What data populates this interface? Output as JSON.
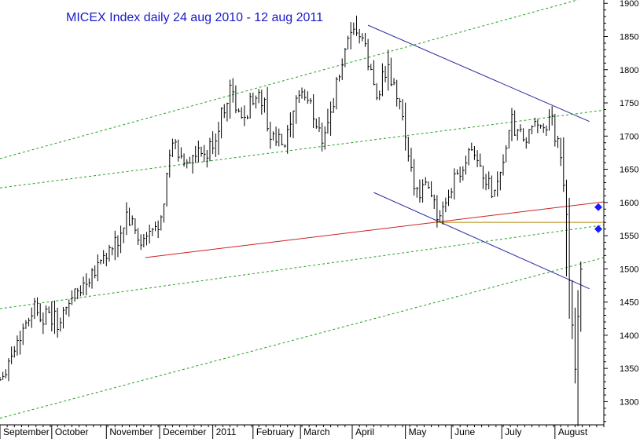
{
  "chart_data": {
    "type": "bar",
    "title": "MICEX Index daily 24 aug 2010 - 12 aug 2011",
    "xlabel": "",
    "ylabel": "",
    "ylim": [
      1265,
      1905
    ],
    "y_ticks": [
      1300,
      1350,
      1400,
      1450,
      1500,
      1550,
      1600,
      1650,
      1700,
      1750,
      1800,
      1850,
      1900
    ],
    "y_axis_side": "right",
    "grid": false,
    "months": [
      {
        "label": "September",
        "start": 0,
        "end": 36
      },
      {
        "label": "October",
        "start": 36,
        "end": 74
      },
      {
        "label": "November",
        "start": 74,
        "end": 111
      },
      {
        "label": "December",
        "start": 111,
        "end": 148
      },
      {
        "label": "2011",
        "start": 148,
        "end": 176
      },
      {
        "label": "February",
        "start": 176,
        "end": 209
      },
      {
        "label": "March",
        "start": 209,
        "end": 245
      },
      {
        "label": "April",
        "start": 245,
        "end": 282
      },
      {
        "label": "May",
        "start": 282,
        "end": 314
      },
      {
        "label": "June",
        "start": 314,
        "end": 349
      },
      {
        "label": "July",
        "start": 349,
        "end": 386
      },
      {
        "label": "August",
        "start": 386,
        "end": 420
      }
    ],
    "x_range": [
      0,
      420
    ],
    "keypoints": [
      [
        0,
        1335
      ],
      [
        10,
        1380
      ],
      [
        18,
        1420
      ],
      [
        24,
        1445
      ],
      [
        30,
        1428
      ],
      [
        38,
        1425
      ],
      [
        42,
        1415
      ],
      [
        48,
        1455
      ],
      [
        56,
        1470
      ],
      [
        62,
        1490
      ],
      [
        70,
        1515
      ],
      [
        76,
        1525
      ],
      [
        82,
        1540
      ],
      [
        88,
        1580
      ],
      [
        93,
        1560
      ],
      [
        98,
        1535
      ],
      [
        104,
        1550
      ],
      [
        110,
        1565
      ],
      [
        114,
        1610
      ],
      [
        120,
        1690
      ],
      [
        126,
        1665
      ],
      [
        132,
        1665
      ],
      [
        138,
        1670
      ],
      [
        144,
        1670
      ],
      [
        150,
        1700
      ],
      [
        156,
        1745
      ],
      [
        160,
        1775
      ],
      [
        164,
        1745
      ],
      [
        168,
        1720
      ],
      [
        172,
        1740
      ],
      [
        178,
        1765
      ],
      [
        184,
        1745
      ],
      [
        188,
        1700
      ],
      [
        194,
        1690
      ],
      [
        198,
        1685
      ],
      [
        204,
        1725
      ],
      [
        208,
        1770
      ],
      [
        214,
        1755
      ],
      [
        220,
        1720
      ],
      [
        224,
        1700
      ],
      [
        230,
        1735
      ],
      [
        236,
        1795
      ],
      [
        242,
        1835
      ],
      [
        248,
        1860
      ],
      [
        252,
        1845
      ],
      [
        256,
        1810
      ],
      [
        262,
        1760
      ],
      [
        266,
        1790
      ],
      [
        270,
        1795
      ],
      [
        276,
        1760
      ],
      [
        280,
        1730
      ],
      [
        283,
        1670
      ],
      [
        286,
        1640
      ],
      [
        292,
        1620
      ],
      [
        298,
        1630
      ],
      [
        302,
        1600
      ],
      [
        305,
        1570
      ],
      [
        310,
        1590
      ],
      [
        316,
        1640
      ],
      [
        322,
        1655
      ],
      [
        326,
        1685
      ],
      [
        330,
        1680
      ],
      [
        334,
        1650
      ],
      [
        338,
        1635
      ],
      [
        342,
        1618
      ],
      [
        346,
        1630
      ],
      [
        350,
        1665
      ],
      [
        356,
        1720
      ],
      [
        360,
        1700
      ],
      [
        366,
        1695
      ],
      [
        370,
        1705
      ],
      [
        376,
        1725
      ],
      [
        380,
        1715
      ],
      [
        384,
        1720
      ],
      [
        388,
        1685
      ],
      [
        391,
        1650
      ],
      [
        393,
        1595
      ],
      [
        396,
        1500
      ],
      [
        398,
        1430
      ],
      [
        400,
        1375
      ],
      [
        402,
        1450
      ],
      [
        404,
        1465
      ]
    ],
    "trend_lines": [
      {
        "color": "#2a2aa0",
        "style": "solid",
        "from": [
          256,
          1867
        ],
        "to": [
          410,
          1722
        ]
      },
      {
        "color": "#2a2aa0",
        "style": "solid",
        "from": [
          260,
          1615
        ],
        "to": [
          410,
          1470
        ]
      },
      {
        "color": "#cc2222",
        "style": "solid",
        "from": [
          101,
          1517
        ],
        "to": [
          420,
          1601
        ]
      },
      {
        "color": "#b8860b",
        "style": "solid",
        "from": [
          302,
          1570
        ],
        "to": [
          420,
          1570
        ]
      },
      {
        "color": "#22a022",
        "style": "dashed",
        "from": [
          0,
          1666
        ],
        "to": [
          420,
          1916
        ]
      },
      {
        "color": "#22a022",
        "style": "dashed",
        "from": [
          0,
          1622
        ],
        "to": [
          420,
          1739
        ]
      },
      {
        "color": "#22a022",
        "style": "dashed",
        "from": [
          0,
          1440
        ],
        "to": [
          420,
          1566
        ]
      },
      {
        "color": "#22a022",
        "style": "dashed",
        "from": [
          0,
          1275
        ],
        "to": [
          420,
          1517
        ]
      }
    ],
    "markers": [
      {
        "value": 1593,
        "color": "#1a1aff"
      },
      {
        "value": 1560,
        "color": "#1a1aff"
      }
    ]
  }
}
